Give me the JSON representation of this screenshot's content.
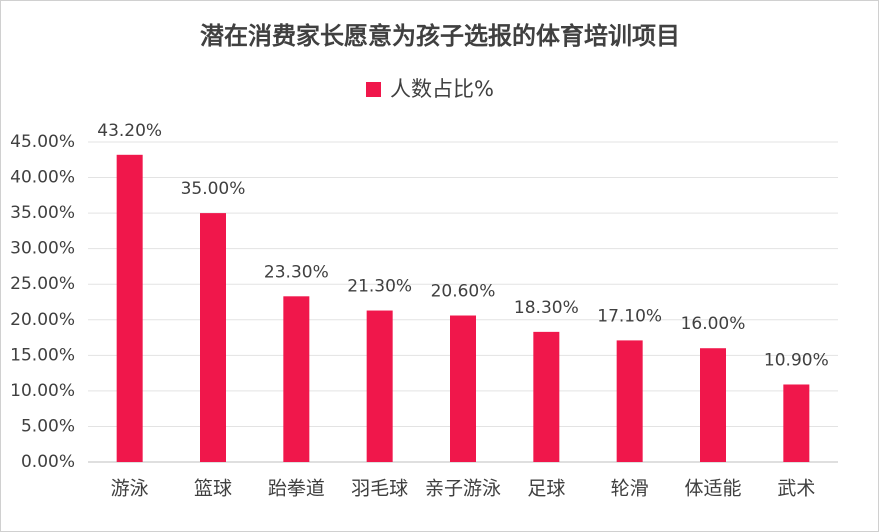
{
  "chart_data": {
    "type": "bar",
    "title": "潜在消费家长愿意为孩子选报的体育培训项目",
    "legend": "人数占比%",
    "categories": [
      "游泳",
      "篮球",
      "跆拳道",
      "羽毛球",
      "亲子游泳",
      "足球",
      "轮滑",
      "体适能",
      "武术"
    ],
    "values": [
      43.2,
      35.0,
      23.3,
      21.3,
      20.6,
      18.3,
      17.1,
      16.0,
      10.9
    ],
    "value_labels": [
      "43.20%",
      "35.00%",
      "23.30%",
      "21.30%",
      "20.60%",
      "18.30%",
      "17.10%",
      "16.00%",
      "10.90%"
    ],
    "color": "#f0174b",
    "ylim": [
      0,
      45
    ],
    "yticks": [
      {
        "value": 0,
        "label": "0.00%"
      },
      {
        "value": 5,
        "label": "5.00%"
      },
      {
        "value": 10,
        "label": "10.00%"
      },
      {
        "value": 15,
        "label": "15.00%"
      },
      {
        "value": 20,
        "label": "20.00%"
      },
      {
        "value": 25,
        "label": "25.00%"
      },
      {
        "value": 30,
        "label": "30.00%"
      },
      {
        "value": 35,
        "label": "35.00%"
      },
      {
        "value": 40,
        "label": "40.00%"
      },
      {
        "value": 45,
        "label": "45.00%"
      }
    ],
    "grid": true
  }
}
